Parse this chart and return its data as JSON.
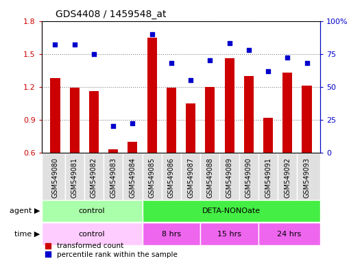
{
  "title": "GDS4408 / 1459548_at",
  "samples": [
    "GSM549080",
    "GSM549081",
    "GSM549082",
    "GSM549083",
    "GSM549084",
    "GSM549085",
    "GSM549086",
    "GSM549087",
    "GSM549088",
    "GSM549089",
    "GSM549090",
    "GSM549091",
    "GSM549092",
    "GSM549093"
  ],
  "bar_values": [
    1.28,
    1.19,
    1.16,
    0.63,
    0.7,
    1.65,
    1.19,
    1.05,
    1.2,
    1.46,
    1.3,
    0.92,
    1.33,
    1.21
  ],
  "scatter_values": [
    82,
    82,
    75,
    20,
    22,
    90,
    68,
    55,
    70,
    83,
    78,
    62,
    72,
    68
  ],
  "ylim_left": [
    0.6,
    1.8
  ],
  "ylim_right": [
    0,
    100
  ],
  "yticks_left": [
    0.6,
    0.9,
    1.2,
    1.5,
    1.8
  ],
  "yticks_right": [
    0,
    25,
    50,
    75,
    100
  ],
  "ytick_labels_right": [
    "0",
    "25",
    "50",
    "75",
    "100%"
  ],
  "bar_color": "#cc0000",
  "scatter_color": "#0000cc",
  "bar_baseline": 0.6,
  "agent_groups": [
    {
      "label": "control",
      "start": 0,
      "end": 5,
      "color": "#aaffaa"
    },
    {
      "label": "DETA-NONOate",
      "start": 5,
      "end": 14,
      "color": "#44ee44"
    }
  ],
  "time_groups": [
    {
      "label": "control",
      "start": 0,
      "end": 5,
      "color": "#ffccff"
    },
    {
      "label": "8 hrs",
      "start": 5,
      "end": 8,
      "color": "#ee66ee"
    },
    {
      "label": "15 hrs",
      "start": 8,
      "end": 11,
      "color": "#ee66ee"
    },
    {
      "label": "24 hrs",
      "start": 11,
      "end": 14,
      "color": "#ee66ee"
    }
  ],
  "grid_yticks": [
    0.9,
    1.2,
    1.5,
    1.8
  ],
  "agent_label": "agent",
  "time_label": "time",
  "legend_items": [
    {
      "label": "transformed count",
      "color": "#cc0000",
      "marker": "s"
    },
    {
      "label": "percentile rank within the sample",
      "color": "#0000cc",
      "marker": "s"
    }
  ]
}
